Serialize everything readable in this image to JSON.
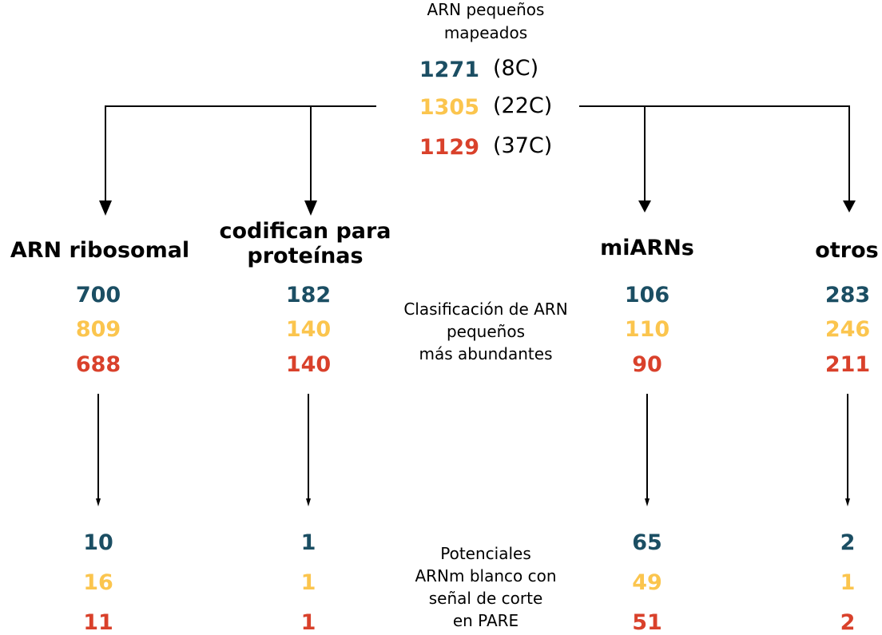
{
  "colors": {
    "8C": "#1b4e63",
    "22C": "#fbc54e",
    "37C": "#d9412b",
    "lines": "#000000"
  },
  "header": {
    "title_line1": "ARN pequeños",
    "title_line2": "mapeados",
    "mapped": [
      {
        "value": "1271",
        "condition": "(8C)"
      },
      {
        "value": "1305",
        "condition": "(22C)"
      },
      {
        "value": "1129",
        "condition": "(37C)"
      }
    ]
  },
  "middle_caption": {
    "line1": "Clasificación de ARN",
    "line2": "pequeños",
    "line3": "más abundantes"
  },
  "bottom_caption": {
    "line1": "Potenciales",
    "line2": "ARNm blanco con",
    "line3": "señal de corte",
    "line4": "en PARE"
  },
  "categories": [
    {
      "name_line1": "ARN ribosomal",
      "name_line2": "",
      "counts": [
        "700",
        "809",
        "688"
      ],
      "targets": [
        "10",
        "16",
        "11"
      ]
    },
    {
      "name_line1": "codifican para",
      "name_line2": "proteínas",
      "counts": [
        "182",
        "140",
        "140"
      ],
      "targets": [
        "1",
        "1",
        "1"
      ]
    },
    {
      "name_line1": "miARNs",
      "name_line2": "",
      "counts": [
        "106",
        "110",
        "90"
      ],
      "targets": [
        "65",
        "49",
        "51"
      ]
    },
    {
      "name_line1": "otros",
      "name_line2": "",
      "counts": [
        "283",
        "246",
        "211"
      ],
      "targets": [
        "2",
        "1",
        "2"
      ]
    }
  ]
}
